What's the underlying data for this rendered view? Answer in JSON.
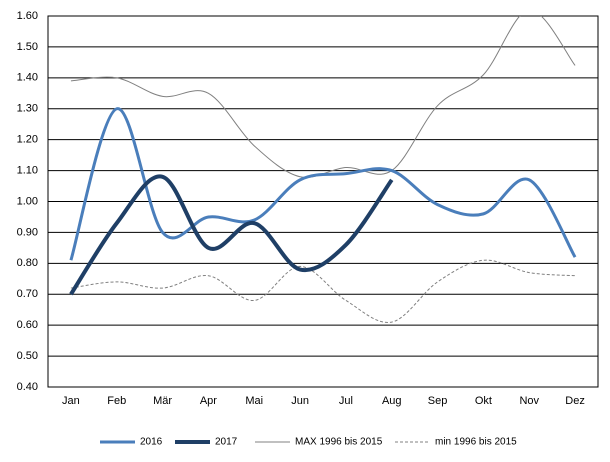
{
  "chart_data": {
    "type": "line",
    "categories": [
      "Jan",
      "Feb",
      "Mär",
      "Apr",
      "Mai",
      "Jun",
      "Jul",
      "Aug",
      "Sep",
      "Okt",
      "Nov",
      "Dez"
    ],
    "series": [
      {
        "name": "2016",
        "color": "#4a7ebb",
        "values": [
          0.81,
          1.3,
          0.9,
          0.95,
          0.94,
          1.07,
          1.09,
          1.1,
          0.99,
          0.96,
          1.07,
          0.82
        ]
      },
      {
        "name": "2017",
        "color": "#1f3f66",
        "values": [
          0.7,
          0.93,
          1.08,
          0.85,
          0.93,
          0.78,
          0.86,
          1.07,
          null,
          null,
          null,
          null
        ]
      },
      {
        "name": "MAX 1996 bis 2015",
        "color": "#808080",
        "values": [
          1.39,
          1.4,
          1.34,
          1.35,
          1.18,
          1.08,
          1.11,
          1.1,
          1.31,
          1.41,
          1.62,
          1.44
        ]
      },
      {
        "name": "min 1996 bis 2015",
        "color": "#808080",
        "values": [
          0.72,
          0.74,
          0.72,
          0.76,
          0.68,
          0.79,
          0.68,
          0.61,
          0.74,
          0.81,
          0.77,
          0.76
        ]
      }
    ],
    "ylim": [
      0.4,
      1.6
    ],
    "yticks": [
      {
        "value": 0.4,
        "label": "0.40"
      },
      {
        "value": 0.5,
        "label": "0.50"
      },
      {
        "value": 0.6,
        "label": "0.60"
      },
      {
        "value": 0.7,
        "label": "0.70"
      },
      {
        "value": 0.8,
        "label": "0.80"
      },
      {
        "value": 0.9,
        "label": "0.90"
      },
      {
        "value": 1.0,
        "label": "1.00"
      },
      {
        "value": 1.1,
        "label": "1.10"
      },
      {
        "value": 1.2,
        "label": "1.20"
      },
      {
        "value": 1.3,
        "label": "1.30"
      },
      {
        "value": 1.4,
        "label": "1.40"
      },
      {
        "value": 1.5,
        "label": "1.50"
      },
      {
        "value": 1.6,
        "label": "1.60"
      }
    ],
    "grid": true,
    "legend": "bottom"
  }
}
